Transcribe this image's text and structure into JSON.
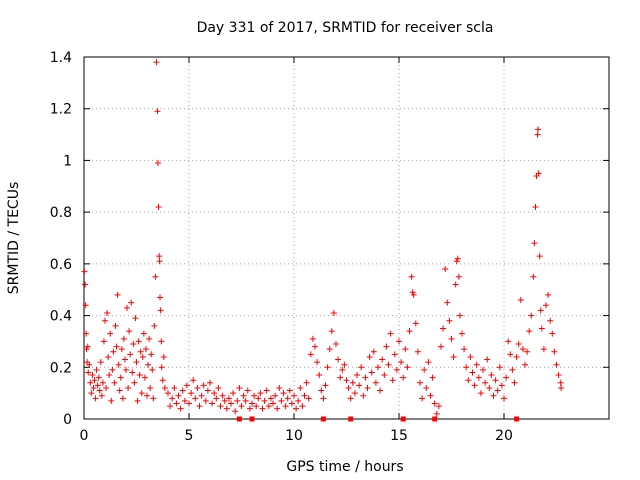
{
  "chart_data": {
    "type": "scatter",
    "title": "Day 331 of 2017, SRMTID for receiver scla",
    "xlabel": "GPS time / hours",
    "ylabel": "SRMTID / TECUs",
    "xlim": [
      0,
      25
    ],
    "ylim": [
      0,
      1.4
    ],
    "grid": true,
    "marker": "+",
    "color": "#ff0000",
    "x_ticks": [
      0,
      5,
      10,
      15,
      20
    ],
    "y_ticks": [
      0,
      0.2,
      0.4,
      0.6,
      0.8,
      1,
      1.2,
      1.4
    ],
    "x_tick_labels": [
      "0",
      "5",
      "10",
      "15",
      "20"
    ],
    "y_tick_labels": [
      "0",
      "0.2",
      "0.4",
      "0.6",
      "0.8",
      "1",
      "1.2",
      "1.4"
    ],
    "series": [
      {
        "name": "SRMTID",
        "points": [
          [
            0.02,
            0.57
          ],
          [
            0.05,
            0.52
          ],
          [
            0.08,
            0.44
          ],
          [
            0.1,
            0.33
          ],
          [
            0.12,
            0.27
          ],
          [
            0.15,
            0.22
          ],
          [
            0.18,
            0.28
          ],
          [
            0.2,
            0.18
          ],
          [
            0.25,
            0.21
          ],
          [
            0.3,
            0.14
          ],
          [
            0.35,
            0.1
          ],
          [
            0.4,
            0.17
          ],
          [
            0.45,
            0.12
          ],
          [
            0.5,
            0.15
          ],
          [
            0.55,
            0.08
          ],
          [
            0.6,
            0.19
          ],
          [
            0.65,
            0.13
          ],
          [
            0.7,
            0.16
          ],
          [
            0.75,
            0.11
          ],
          [
            0.8,
            0.22
          ],
          [
            0.85,
            0.09
          ],
          [
            0.9,
            0.14
          ],
          [
            0.95,
            0.3
          ],
          [
            1.0,
            0.38
          ],
          [
            1.05,
            0.12
          ],
          [
            1.1,
            0.41
          ],
          [
            1.15,
            0.24
          ],
          [
            1.2,
            0.17
          ],
          [
            1.25,
            0.33
          ],
          [
            1.3,
            0.07
          ],
          [
            1.35,
            0.19
          ],
          [
            1.4,
            0.26
          ],
          [
            1.45,
            0.14
          ],
          [
            1.5,
            0.36
          ],
          [
            1.55,
            0.28
          ],
          [
            1.6,
            0.48
          ],
          [
            1.65,
            0.21
          ],
          [
            1.7,
            0.11
          ],
          [
            1.75,
            0.16
          ],
          [
            1.8,
            0.27
          ],
          [
            1.85,
            0.08
          ],
          [
            1.9,
            0.31
          ],
          [
            1.95,
            0.23
          ],
          [
            2.0,
            0.19
          ],
          [
            2.05,
            0.43
          ],
          [
            2.1,
            0.12
          ],
          [
            2.15,
            0.34
          ],
          [
            2.2,
            0.25
          ],
          [
            2.25,
            0.45
          ],
          [
            2.3,
            0.18
          ],
          [
            2.35,
            0.29
          ],
          [
            2.4,
            0.14
          ],
          [
            2.45,
            0.39
          ],
          [
            2.5,
            0.22
          ],
          [
            2.55,
            0.07
          ],
          [
            2.6,
            0.3
          ],
          [
            2.65,
            0.17
          ],
          [
            2.7,
            0.26
          ],
          [
            2.75,
            0.1
          ],
          [
            2.8,
            0.24
          ],
          [
            2.85,
            0.33
          ],
          [
            2.9,
            0.16
          ],
          [
            2.95,
            0.27
          ],
          [
            3.0,
            0.09
          ],
          [
            3.05,
            0.21
          ],
          [
            3.1,
            0.31
          ],
          [
            3.15,
            0.12
          ],
          [
            3.2,
            0.25
          ],
          [
            3.25,
            0.19
          ],
          [
            3.3,
            0.08
          ],
          [
            3.35,
            0.36
          ],
          [
            3.4,
            0.55
          ],
          [
            3.45,
            1.38
          ],
          [
            3.5,
            1.19
          ],
          [
            3.52,
            0.99
          ],
          [
            3.55,
            0.82
          ],
          [
            3.58,
            0.63
          ],
          [
            3.6,
            0.61
          ],
          [
            3.62,
            0.47
          ],
          [
            3.65,
            0.42
          ],
          [
            3.68,
            0.3
          ],
          [
            3.7,
            0.2
          ],
          [
            3.75,
            0.15
          ],
          [
            3.8,
            0.24
          ],
          [
            3.85,
            0.12
          ],
          [
            4.0,
            0.1
          ],
          [
            4.1,
            0.05
          ],
          [
            4.2,
            0.08
          ],
          [
            4.3,
            0.12
          ],
          [
            4.4,
            0.06
          ],
          [
            4.5,
            0.09
          ],
          [
            4.6,
            0.04
          ],
          [
            4.7,
            0.11
          ],
          [
            4.8,
            0.07
          ],
          [
            4.9,
            0.13
          ],
          [
            5.0,
            0.06
          ],
          [
            5.1,
            0.1
          ],
          [
            5.2,
            0.15
          ],
          [
            5.3,
            0.08
          ],
          [
            5.4,
            0.12
          ],
          [
            5.5,
            0.05
          ],
          [
            5.6,
            0.09
          ],
          [
            5.7,
            0.13
          ],
          [
            5.8,
            0.07
          ],
          [
            5.9,
            0.11
          ],
          [
            6.0,
            0.14
          ],
          [
            6.1,
            0.06
          ],
          [
            6.2,
            0.1
          ],
          [
            6.3,
            0.08
          ],
          [
            6.4,
            0.12
          ],
          [
            6.5,
            0.05
          ],
          [
            6.6,
            0.09
          ],
          [
            6.7,
            0.07
          ],
          [
            6.8,
            0.04
          ],
          [
            6.9,
            0.08
          ],
          [
            7.0,
            0.06
          ],
          [
            7.1,
            0.1
          ],
          [
            7.2,
            0.03
          ],
          [
            7.3,
            0.07
          ],
          [
            7.4,
            0.12
          ],
          [
            7.5,
            0.05
          ],
          [
            7.6,
            0.09
          ],
          [
            7.7,
            0.07
          ],
          [
            7.8,
            0.11
          ],
          [
            7.9,
            0.04
          ],
          [
            8.0,
            0.06
          ],
          [
            8.1,
            0.09
          ],
          [
            8.2,
            0.05
          ],
          [
            8.3,
            0.08
          ],
          [
            8.4,
            0.1
          ],
          [
            8.5,
            0.04
          ],
          [
            8.6,
            0.07
          ],
          [
            8.7,
            0.11
          ],
          [
            8.8,
            0.05
          ],
          [
            8.9,
            0.08
          ],
          [
            9.0,
            0.06
          ],
          [
            9.1,
            0.09
          ],
          [
            9.2,
            0.04
          ],
          [
            9.3,
            0.12
          ],
          [
            9.4,
            0.07
          ],
          [
            9.5,
            0.1
          ],
          [
            9.6,
            0.05
          ],
          [
            9.7,
            0.08
          ],
          [
            9.8,
            0.11
          ],
          [
            9.9,
            0.06
          ],
          [
            10.0,
            0.09
          ],
          [
            10.1,
            0.04
          ],
          [
            10.2,
            0.07
          ],
          [
            10.3,
            0.12
          ],
          [
            10.4,
            0.05
          ],
          [
            10.5,
            0.09
          ],
          [
            10.6,
            0.14
          ],
          [
            10.7,
            0.08
          ],
          [
            10.8,
            0.25
          ],
          [
            10.9,
            0.31
          ],
          [
            11.0,
            0.28
          ],
          [
            11.1,
            0.22
          ],
          [
            11.2,
            0.17
          ],
          [
            11.3,
            0.11
          ],
          [
            11.4,
            0.08
          ],
          [
            11.5,
            0.13
          ],
          [
            11.6,
            0.2
          ],
          [
            11.7,
            0.27
          ],
          [
            11.8,
            0.34
          ],
          [
            11.9,
            0.41
          ],
          [
            12.0,
            0.29
          ],
          [
            12.1,
            0.23
          ],
          [
            12.2,
            0.16
          ],
          [
            12.3,
            0.19
          ],
          [
            12.4,
            0.21
          ],
          [
            12.5,
            0.15
          ],
          [
            12.6,
            0.12
          ],
          [
            12.7,
            0.08
          ],
          [
            12.8,
            0.14
          ],
          [
            12.9,
            0.1
          ],
          [
            13.0,
            0.17
          ],
          [
            13.1,
            0.13
          ],
          [
            13.2,
            0.2
          ],
          [
            13.3,
            0.09
          ],
          [
            13.4,
            0.16
          ],
          [
            13.5,
            0.12
          ],
          [
            13.6,
            0.24
          ],
          [
            13.7,
            0.18
          ],
          [
            13.8,
            0.26
          ],
          [
            13.9,
            0.14
          ],
          [
            14.0,
            0.2
          ],
          [
            14.1,
            0.11
          ],
          [
            14.2,
            0.23
          ],
          [
            14.3,
            0.17
          ],
          [
            14.4,
            0.28
          ],
          [
            14.5,
            0.21
          ],
          [
            14.6,
            0.33
          ],
          [
            14.7,
            0.15
          ],
          [
            14.8,
            0.25
          ],
          [
            14.9,
            0.19
          ],
          [
            15.0,
            0.3
          ],
          [
            15.1,
            0.22
          ],
          [
            15.2,
            0.16
          ],
          [
            15.3,
            0.27
          ],
          [
            15.4,
            0.2
          ],
          [
            15.5,
            0.34
          ],
          [
            15.6,
            0.55
          ],
          [
            15.65,
            0.49
          ],
          [
            15.7,
            0.48
          ],
          [
            15.8,
            0.37
          ],
          [
            15.9,
            0.26
          ],
          [
            16.0,
            0.14
          ],
          [
            16.1,
            0.08
          ],
          [
            16.2,
            0.19
          ],
          [
            16.3,
            0.12
          ],
          [
            16.4,
            0.22
          ],
          [
            16.5,
            0.09
          ],
          [
            16.6,
            0.16
          ],
          [
            16.7,
            0.06
          ],
          [
            16.8,
            0.02
          ],
          [
            16.9,
            0.05
          ],
          [
            17.0,
            0.28
          ],
          [
            17.1,
            0.35
          ],
          [
            17.2,
            0.58
          ],
          [
            17.3,
            0.45
          ],
          [
            17.4,
            0.38
          ],
          [
            17.5,
            0.31
          ],
          [
            17.6,
            0.24
          ],
          [
            17.7,
            0.52
          ],
          [
            17.75,
            0.61
          ],
          [
            17.8,
            0.62
          ],
          [
            17.85,
            0.55
          ],
          [
            17.9,
            0.4
          ],
          [
            18.0,
            0.33
          ],
          [
            18.1,
            0.27
          ],
          [
            18.2,
            0.2
          ],
          [
            18.3,
            0.15
          ],
          [
            18.4,
            0.24
          ],
          [
            18.5,
            0.18
          ],
          [
            18.6,
            0.13
          ],
          [
            18.7,
            0.21
          ],
          [
            18.8,
            0.16
          ],
          [
            18.9,
            0.1
          ],
          [
            19.0,
            0.19
          ],
          [
            19.1,
            0.14
          ],
          [
            19.2,
            0.23
          ],
          [
            19.3,
            0.12
          ],
          [
            19.4,
            0.17
          ],
          [
            19.5,
            0.09
          ],
          [
            19.6,
            0.15
          ],
          [
            19.7,
            0.11
          ],
          [
            19.8,
            0.2
          ],
          [
            19.9,
            0.13
          ],
          [
            20.0,
            0.08
          ],
          [
            20.1,
            0.16
          ],
          [
            20.2,
            0.3
          ],
          [
            20.3,
            0.25
          ],
          [
            20.4,
            0.19
          ],
          [
            20.5,
            0.14
          ],
          [
            20.6,
            0.24
          ],
          [
            20.7,
            0.29
          ],
          [
            20.8,
            0.46
          ],
          [
            20.9,
            0.27
          ],
          [
            21.0,
            0.21
          ],
          [
            21.1,
            0.26
          ],
          [
            21.2,
            0.34
          ],
          [
            21.3,
            0.4
          ],
          [
            21.4,
            0.55
          ],
          [
            21.45,
            0.68
          ],
          [
            21.5,
            0.82
          ],
          [
            21.55,
            0.94
          ],
          [
            21.6,
            1.1
          ],
          [
            21.62,
            1.12
          ],
          [
            21.65,
            0.95
          ],
          [
            21.7,
            0.63
          ],
          [
            21.75,
            0.42
          ],
          [
            21.8,
            0.35
          ],
          [
            21.9,
            0.27
          ],
          [
            22.0,
            0.44
          ],
          [
            22.1,
            0.48
          ],
          [
            22.2,
            0.38
          ],
          [
            22.3,
            0.33
          ],
          [
            22.4,
            0.26
          ],
          [
            22.5,
            0.21
          ],
          [
            22.6,
            0.17
          ],
          [
            22.7,
            0.14
          ],
          [
            22.72,
            0.12
          ]
        ]
      }
    ],
    "bottom_markers_x": [
      7.4,
      8.0,
      11.4,
      12.7,
      15.2,
      16.7,
      20.6
    ]
  }
}
